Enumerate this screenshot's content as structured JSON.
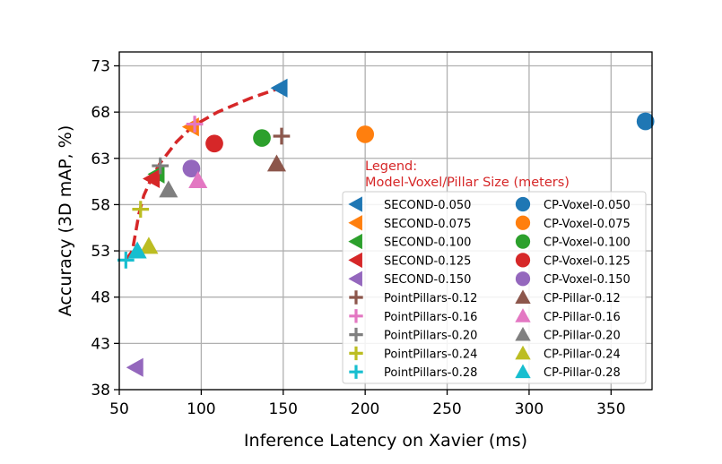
{
  "chart_data": {
    "type": "scatter",
    "title": "",
    "xlabel": "Inference Latency on Xavier (ms)",
    "ylabel": "Accuracy (3D mAP, %)",
    "xlim": [
      50,
      375
    ],
    "ylim": [
      38,
      74.5
    ],
    "xticks": [
      50,
      100,
      150,
      200,
      250,
      300,
      350
    ],
    "yticks": [
      38,
      43,
      48,
      53,
      58,
      63,
      68,
      73
    ],
    "grid": true,
    "legend": {
      "title_line1": "Legend:",
      "title_line2": "Model-Voxel/Pillar Size (meters)",
      "placement": "lower-right",
      "columns": 2
    },
    "frontier": {
      "style": "dashed",
      "color": "#d62728",
      "x": [
        54,
        58,
        62,
        65,
        70,
        75,
        85,
        95,
        110,
        130,
        148
      ],
      "y": [
        52.0,
        53.0,
        57.0,
        59.0,
        61.0,
        62.5,
        64.8,
        66.5,
        68.0,
        69.5,
        70.6
      ]
    },
    "series": [
      {
        "name": "SECOND-0.050",
        "marker": "triangle-left",
        "color": "#1f77b4",
        "x": [
          148
        ],
        "y": [
          70.6
        ]
      },
      {
        "name": "SECOND-0.075",
        "marker": "triangle-left",
        "color": "#ff7f0e",
        "x": [
          94
        ],
        "y": [
          66.4
        ]
      },
      {
        "name": "SECOND-0.100",
        "marker": "triangle-left",
        "color": "#2ca02c",
        "x": [
          73
        ],
        "y": [
          61.3
        ]
      },
      {
        "name": "SECOND-0.125",
        "marker": "triangle-left",
        "color": "#d62728",
        "x": [
          70
        ],
        "y": [
          60.8
        ]
      },
      {
        "name": "SECOND-0.150",
        "marker": "triangle-left",
        "color": "#9467bd",
        "x": [
          60
        ],
        "y": [
          40.4
        ]
      },
      {
        "name": "PointPillars-0.12",
        "marker": "plus",
        "color": "#8c564b",
        "x": [
          149
        ],
        "y": [
          65.4
        ]
      },
      {
        "name": "PointPillars-0.16",
        "marker": "plus",
        "color": "#e377c2",
        "x": [
          96
        ],
        "y": [
          66.7
        ]
      },
      {
        "name": "PointPillars-0.20",
        "marker": "plus",
        "color": "#7f7f7f",
        "x": [
          75
        ],
        "y": [
          62.2
        ]
      },
      {
        "name": "PointPillars-0.24",
        "marker": "plus",
        "color": "#bcbd22",
        "x": [
          63
        ],
        "y": [
          57.5
        ]
      },
      {
        "name": "PointPillars-0.28",
        "marker": "plus",
        "color": "#17becf",
        "x": [
          54
        ],
        "y": [
          52.0
        ]
      },
      {
        "name": "CP-Voxel-0.050",
        "marker": "circle",
        "color": "#1f77b4",
        "x": [
          371
        ],
        "y": [
          67.0
        ]
      },
      {
        "name": "CP-Voxel-0.075",
        "marker": "circle",
        "color": "#ff7f0e",
        "x": [
          200
        ],
        "y": [
          65.6
        ]
      },
      {
        "name": "CP-Voxel-0.100",
        "marker": "circle",
        "color": "#2ca02c",
        "x": [
          137
        ],
        "y": [
          65.2
        ]
      },
      {
        "name": "CP-Voxel-0.125",
        "marker": "circle",
        "color": "#d62728",
        "x": [
          108
        ],
        "y": [
          64.6
        ]
      },
      {
        "name": "CP-Voxel-0.150",
        "marker": "circle",
        "color": "#9467bd",
        "x": [
          94
        ],
        "y": [
          61.9
        ]
      },
      {
        "name": "CP-Pillar-0.12",
        "marker": "triangle-up",
        "color": "#8c564b",
        "x": [
          146
        ],
        "y": [
          62.4
        ]
      },
      {
        "name": "CP-Pillar-0.16",
        "marker": "triangle-up",
        "color": "#e377c2",
        "x": [
          98
        ],
        "y": [
          60.6
        ]
      },
      {
        "name": "CP-Pillar-0.20",
        "marker": "triangle-up",
        "color": "#7f7f7f",
        "x": [
          80
        ],
        "y": [
          59.6
        ]
      },
      {
        "name": "CP-Pillar-0.24",
        "marker": "triangle-up",
        "color": "#bcbd22",
        "x": [
          68
        ],
        "y": [
          53.5
        ]
      },
      {
        "name": "CP-Pillar-0.28",
        "marker": "triangle-up",
        "color": "#17becf",
        "x": [
          61
        ],
        "y": [
          53.0
        ]
      }
    ]
  }
}
